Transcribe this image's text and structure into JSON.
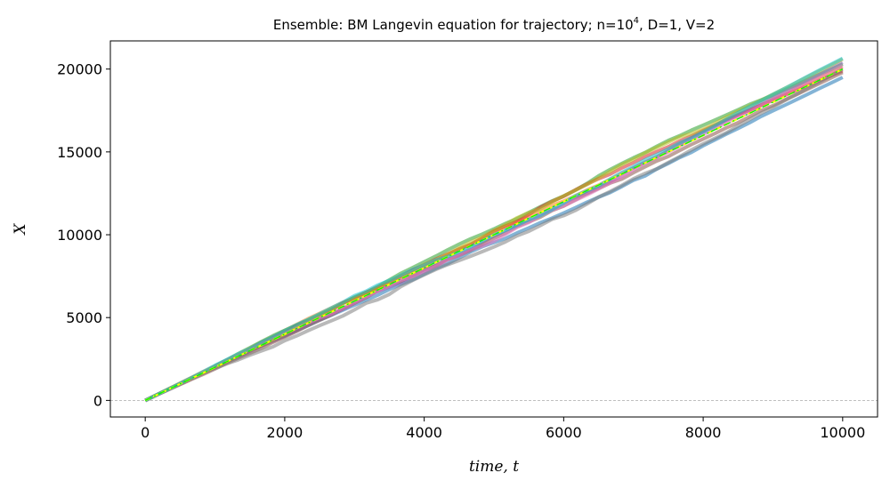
{
  "chart_data": {
    "type": "line",
    "title_prefix": "Ensemble: BM Langevin equation for trajectory; n=10",
    "title_sup": "4",
    "title_suffix": ", D=1, V=2",
    "xlabel": "time, t",
    "ylabel": "X",
    "xlim": [
      -500,
      10500
    ],
    "ylim": [
      -1000,
      21700
    ],
    "xticks": [
      0,
      2000,
      4000,
      6000,
      8000,
      10000
    ],
    "xtick_labels": [
      "0",
      "2000",
      "4000",
      "6000",
      "8000",
      "10000"
    ],
    "yticks": [
      0,
      5000,
      10000,
      15000,
      20000
    ],
    "ytick_labels": [
      "0",
      "5000",
      "10000",
      "15000",
      "20000"
    ],
    "zero_line": true,
    "drift_V": 2,
    "ensemble_colors": [
      "#1f77b4",
      "#ff7f0e",
      "#2ca02c",
      "#d62728",
      "#9467bd",
      "#8c564b",
      "#e377c2",
      "#7f7f7f",
      "#bcbd22",
      "#17becf"
    ],
    "ensemble_final_values": [
      19500,
      20100,
      20300,
      19900,
      20400,
      19800,
      20200,
      20000,
      20600,
      20650
    ],
    "mean_line": {
      "color": "#ffff00",
      "style": "dashed",
      "x": [
        0,
        10000
      ],
      "y": [
        0,
        20000
      ]
    },
    "theory_line": {
      "color": "#00ff00",
      "style": "dashdot",
      "x": [
        0,
        10000
      ],
      "y": [
        0,
        20000
      ]
    }
  }
}
